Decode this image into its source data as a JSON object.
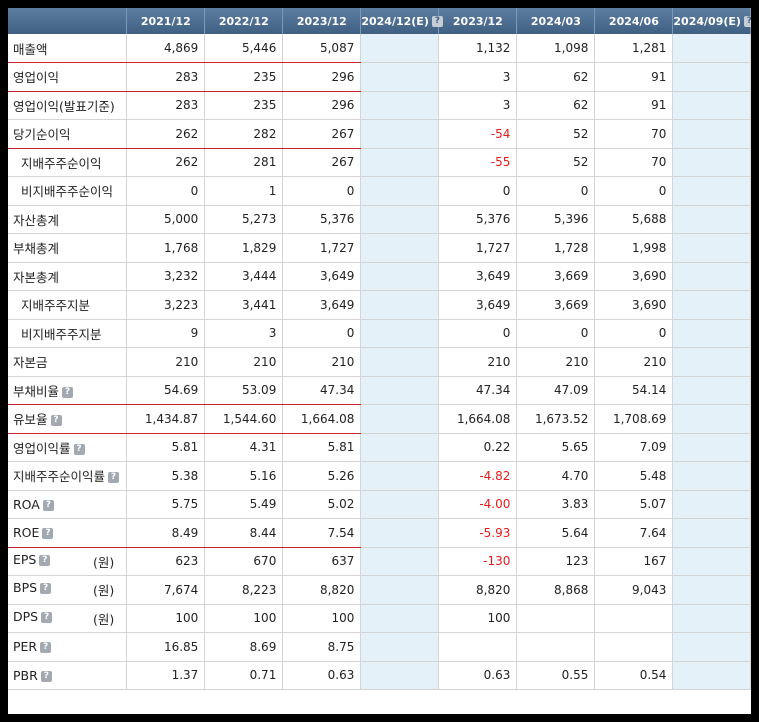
{
  "headers": [
    "",
    "2021/12",
    "2022/12",
    "2023/12",
    "2024/12(E)",
    "2023/12",
    "2024/03",
    "2024/06",
    "2024/09(E)"
  ],
  "help_glyph": "?",
  "rows": [
    {
      "label": "매출액",
      "sub": false,
      "help": false,
      "unit": "",
      "values": [
        "4,869",
        "5,446",
        "5,087",
        "",
        "1,132",
        "1,098",
        "1,281",
        ""
      ],
      "neg": [
        false,
        false,
        false,
        false,
        false,
        false,
        false,
        false
      ],
      "red_line": true
    },
    {
      "label": "영업이익",
      "sub": false,
      "help": false,
      "unit": "",
      "values": [
        "283",
        "235",
        "296",
        "",
        "3",
        "62",
        "91",
        ""
      ],
      "neg": [
        false,
        false,
        false,
        false,
        false,
        false,
        false,
        false
      ],
      "red_line": true
    },
    {
      "label": "영업이익(발표기준)",
      "sub": false,
      "help": false,
      "unit": "",
      "values": [
        "283",
        "235",
        "296",
        "",
        "3",
        "62",
        "91",
        ""
      ],
      "neg": [
        false,
        false,
        false,
        false,
        false,
        false,
        false,
        false
      ],
      "red_line": false
    },
    {
      "label": "당기순이익",
      "sub": false,
      "help": false,
      "unit": "",
      "values": [
        "262",
        "282",
        "267",
        "",
        "-54",
        "52",
        "70",
        ""
      ],
      "neg": [
        false,
        false,
        false,
        false,
        true,
        false,
        false,
        false
      ],
      "red_line": true
    },
    {
      "label": "지배주주순이익",
      "sub": true,
      "help": false,
      "unit": "",
      "values": [
        "262",
        "281",
        "267",
        "",
        "-55",
        "52",
        "70",
        ""
      ],
      "neg": [
        false,
        false,
        false,
        false,
        true,
        false,
        false,
        false
      ],
      "red_line": false
    },
    {
      "label": "비지배주주순이익",
      "sub": true,
      "help": false,
      "unit": "",
      "values": [
        "0",
        "1",
        "0",
        "",
        "0",
        "0",
        "0",
        ""
      ],
      "neg": [
        false,
        false,
        false,
        false,
        false,
        false,
        false,
        false
      ],
      "red_line": false
    },
    {
      "label": "자산총계",
      "sub": false,
      "help": false,
      "unit": "",
      "values": [
        "5,000",
        "5,273",
        "5,376",
        "",
        "5,376",
        "5,396",
        "5,688",
        ""
      ],
      "neg": [
        false,
        false,
        false,
        false,
        false,
        false,
        false,
        false
      ],
      "red_line": false
    },
    {
      "label": "부채총계",
      "sub": false,
      "help": false,
      "unit": "",
      "values": [
        "1,768",
        "1,829",
        "1,727",
        "",
        "1,727",
        "1,728",
        "1,998",
        ""
      ],
      "neg": [
        false,
        false,
        false,
        false,
        false,
        false,
        false,
        false
      ],
      "red_line": false
    },
    {
      "label": "자본총계",
      "sub": false,
      "help": false,
      "unit": "",
      "values": [
        "3,232",
        "3,444",
        "3,649",
        "",
        "3,649",
        "3,669",
        "3,690",
        ""
      ],
      "neg": [
        false,
        false,
        false,
        false,
        false,
        false,
        false,
        false
      ],
      "red_line": false
    },
    {
      "label": "지배주주지분",
      "sub": true,
      "help": false,
      "unit": "",
      "values": [
        "3,223",
        "3,441",
        "3,649",
        "",
        "3,649",
        "3,669",
        "3,690",
        ""
      ],
      "neg": [
        false,
        false,
        false,
        false,
        false,
        false,
        false,
        false
      ],
      "red_line": false
    },
    {
      "label": "비지배주주지분",
      "sub": true,
      "help": false,
      "unit": "",
      "values": [
        "9",
        "3",
        "0",
        "",
        "0",
        "0",
        "0",
        ""
      ],
      "neg": [
        false,
        false,
        false,
        false,
        false,
        false,
        false,
        false
      ],
      "red_line": false
    },
    {
      "label": "자본금",
      "sub": false,
      "help": false,
      "unit": "",
      "values": [
        "210",
        "210",
        "210",
        "",
        "210",
        "210",
        "210",
        ""
      ],
      "neg": [
        false,
        false,
        false,
        false,
        false,
        false,
        false,
        false
      ],
      "red_line": false
    },
    {
      "label": "부채비율",
      "sub": false,
      "help": true,
      "unit": "",
      "values": [
        "54.69",
        "53.09",
        "47.34",
        "",
        "47.34",
        "47.09",
        "54.14",
        ""
      ],
      "neg": [
        false,
        false,
        false,
        false,
        false,
        false,
        false,
        false
      ],
      "red_line": true
    },
    {
      "label": "유보율",
      "sub": false,
      "help": true,
      "unit": "",
      "values": [
        "1,434.87",
        "1,544.60",
        "1,664.08",
        "",
        "1,664.08",
        "1,673.52",
        "1,708.69",
        ""
      ],
      "neg": [
        false,
        false,
        false,
        false,
        false,
        false,
        false,
        false
      ],
      "red_line": true
    },
    {
      "label": "영업이익률",
      "sub": false,
      "help": true,
      "unit": "",
      "values": [
        "5.81",
        "4.31",
        "5.81",
        "",
        "0.22",
        "5.65",
        "7.09",
        ""
      ],
      "neg": [
        false,
        false,
        false,
        false,
        false,
        false,
        false,
        false
      ],
      "red_line": false
    },
    {
      "label": "지배주주순이익률",
      "sub": false,
      "help": true,
      "unit": "",
      "values": [
        "5.38",
        "5.16",
        "5.26",
        "",
        "-4.82",
        "4.70",
        "5.48",
        ""
      ],
      "neg": [
        false,
        false,
        false,
        false,
        true,
        false,
        false,
        false
      ],
      "red_line": false
    },
    {
      "label": "ROA",
      "sub": false,
      "help": true,
      "unit": "",
      "values": [
        "5.75",
        "5.49",
        "5.02",
        "",
        "-4.00",
        "3.83",
        "5.07",
        ""
      ],
      "neg": [
        false,
        false,
        false,
        false,
        true,
        false,
        false,
        false
      ],
      "red_line": false
    },
    {
      "label": "ROE",
      "sub": false,
      "help": true,
      "unit": "",
      "values": [
        "8.49",
        "8.44",
        "7.54",
        "",
        "-5.93",
        "5.64",
        "7.64",
        ""
      ],
      "neg": [
        false,
        false,
        false,
        false,
        true,
        false,
        false,
        false
      ],
      "red_line": true
    },
    {
      "label": "EPS",
      "sub": false,
      "help": true,
      "unit": "(원)",
      "values": [
        "623",
        "670",
        "637",
        "",
        "-130",
        "123",
        "167",
        ""
      ],
      "neg": [
        false,
        false,
        false,
        false,
        true,
        false,
        false,
        false
      ],
      "red_line": false
    },
    {
      "label": "BPS",
      "sub": false,
      "help": true,
      "unit": "(원)",
      "values": [
        "7,674",
        "8,223",
        "8,820",
        "",
        "8,820",
        "8,868",
        "9,043",
        ""
      ],
      "neg": [
        false,
        false,
        false,
        false,
        false,
        false,
        false,
        false
      ],
      "red_line": false
    },
    {
      "label": "DPS",
      "sub": false,
      "help": true,
      "unit": "(원)",
      "values": [
        "100",
        "100",
        "100",
        "",
        "100",
        "",
        "",
        ""
      ],
      "neg": [
        false,
        false,
        false,
        false,
        false,
        false,
        false,
        false
      ],
      "red_line": false
    },
    {
      "label": "PER",
      "sub": false,
      "help": true,
      "unit": "",
      "values": [
        "16.85",
        "8.69",
        "8.75",
        "",
        "",
        "",
        "",
        ""
      ],
      "neg": [
        false,
        false,
        false,
        false,
        false,
        false,
        false,
        false
      ],
      "red_line": false
    },
    {
      "label": "PBR",
      "sub": false,
      "help": true,
      "unit": "",
      "values": [
        "1.37",
        "0.71",
        "0.63",
        "",
        "0.63",
        "0.55",
        "0.54",
        ""
      ],
      "neg": [
        false,
        false,
        false,
        false,
        false,
        false,
        false,
        false
      ],
      "red_line": false
    }
  ]
}
